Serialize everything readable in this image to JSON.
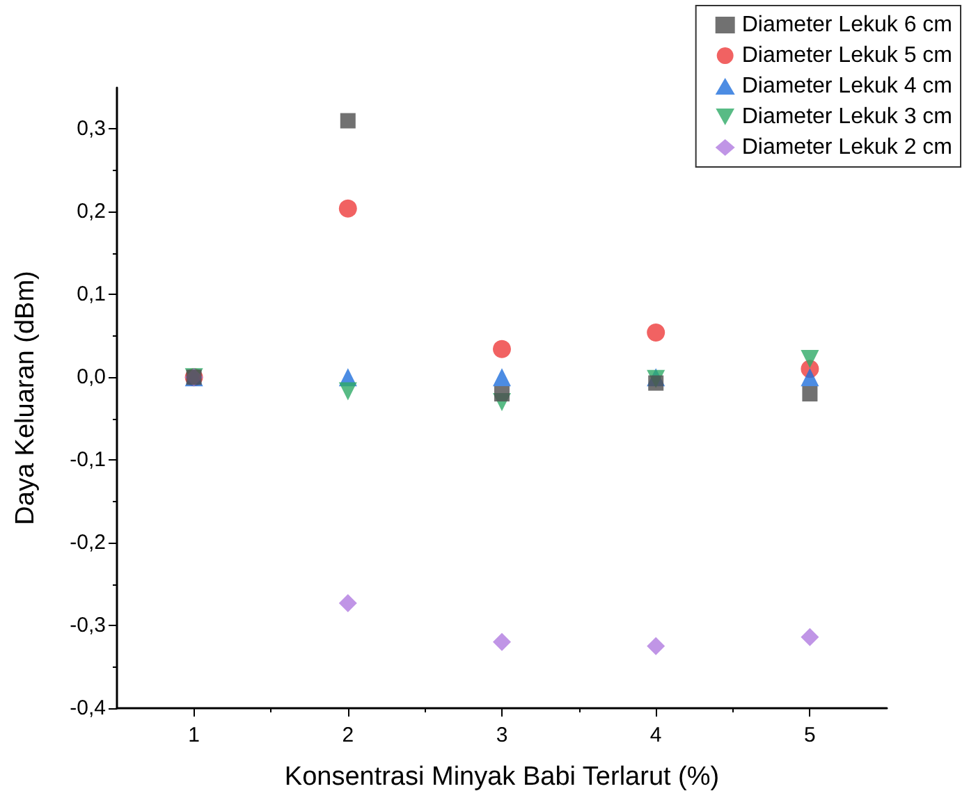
{
  "chart_data": {
    "type": "scatter",
    "xlabel": "Konsentrasi Minyak Babi Terlarut (%)",
    "ylabel": "Daya Keluaran (dBm)",
    "x": [
      1,
      2,
      3,
      4,
      5
    ],
    "series": [
      {
        "name": "Diameter Lekuk 6 cm",
        "color": "#4d4d4d",
        "marker": "square",
        "values": [
          0,
          0.31,
          -0.02,
          -0.007,
          -0.02
        ]
      },
      {
        "name": "Diameter Lekuk 5 cm",
        "color": "#ee3b3b",
        "marker": "circle",
        "values": [
          0,
          0.204,
          0.034,
          0.054,
          0.01
        ]
      },
      {
        "name": "Diameter Lekuk 4 cm",
        "color": "#1f6fdc",
        "marker": "triangle",
        "values": [
          0,
          0,
          0,
          0,
          0
        ]
      },
      {
        "name": "Diameter Lekuk 3 cm",
        "color": "#2eaa66",
        "marker": "triangle-down",
        "values": [
          0,
          -0.017,
          -0.03,
          -0.002,
          0.022
        ]
      },
      {
        "name": "Diameter Lekuk 2 cm",
        "color": "#b07ae0",
        "marker": "diamond",
        "values": [
          0,
          -0.273,
          -0.32,
          -0.325,
          -0.314
        ]
      }
    ],
    "xlim": [
      0.5,
      5.5
    ],
    "xticks": [
      1,
      2,
      3,
      4,
      5
    ],
    "ylim": [
      -0.4,
      0.35
    ],
    "yticks": [
      {
        "value": -0.4,
        "label": "-0,4"
      },
      {
        "value": -0.3,
        "label": "-0,3"
      },
      {
        "value": -0.2,
        "label": "-0,2"
      },
      {
        "value": -0.1,
        "label": "-0,1"
      },
      {
        "value": 0,
        "label": "0,0"
      },
      {
        "value": 0.1,
        "label": "0,1"
      },
      {
        "value": 0.2,
        "label": "0,2"
      },
      {
        "value": 0.3,
        "label": "0,3"
      }
    ],
    "grid": false,
    "legend": "top right"
  }
}
